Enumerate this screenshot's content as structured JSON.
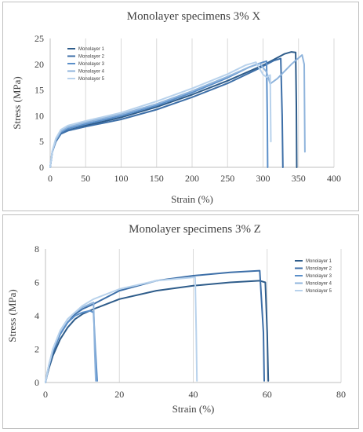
{
  "chart_data": [
    {
      "type": "line",
      "title": "Monolayer specimens 3% X",
      "xlabel": "Strain (%)",
      "ylabel": "Stress (MPa)",
      "xlim": [
        0,
        400
      ],
      "ylim": [
        0,
        25
      ],
      "xticks": [
        "0",
        "50",
        "100",
        "150",
        "200",
        "250",
        "300",
        "350",
        "400"
      ],
      "yticks": [
        "0",
        "5",
        "10",
        "15",
        "20",
        "25"
      ],
      "grid": "vertical",
      "legend_position": "top-left",
      "series": [
        {
          "name": "Monolayer 1",
          "color": "#2e5c8a",
          "x": [
            0,
            3,
            8,
            15,
            25,
            50,
            100,
            150,
            200,
            250,
            300,
            330,
            340,
            346,
            347,
            347.5
          ],
          "y": [
            0,
            3,
            5,
            6.5,
            7.2,
            8.1,
            9.7,
            11.7,
            14.1,
            16.8,
            19.8,
            22,
            22.4,
            22.3,
            12,
            0
          ]
        },
        {
          "name": "Monolayer 2",
          "color": "#3d6fa8",
          "x": [
            0,
            3,
            8,
            15,
            25,
            50,
            100,
            150,
            200,
            250,
            290,
            315,
            325,
            327,
            328
          ],
          "y": [
            0,
            3,
            5,
            6.5,
            7.1,
            7.9,
            9.3,
            11.2,
            13.6,
            16.3,
            18.9,
            20.7,
            21.1,
            10,
            0
          ]
        },
        {
          "name": "Monolayer 3",
          "color": "#5b8fc9",
          "x": [
            0,
            3,
            8,
            15,
            25,
            50,
            100,
            150,
            200,
            250,
            280,
            300,
            305,
            306,
            306.5
          ],
          "y": [
            0,
            3,
            5.2,
            6.8,
            7.5,
            8.4,
            10,
            12,
            14.5,
            17.4,
            19.4,
            20.4,
            20.6,
            10,
            0
          ]
        },
        {
          "name": "Monolayer 4",
          "color": "#8fb4dc",
          "x": [
            0,
            3,
            8,
            15,
            25,
            50,
            100,
            150,
            200,
            250,
            280,
            295,
            305,
            310,
            320,
            340,
            355,
            358,
            359
          ],
          "y": [
            0,
            3,
            5.3,
            7,
            7.8,
            8.7,
            10.3,
            12.3,
            14.8,
            17.6,
            19.4,
            20.2,
            18.5,
            16.2,
            17.2,
            20,
            21.8,
            20,
            3
          ]
        },
        {
          "name": "Monolayer 5",
          "color": "#b8d2ec",
          "x": [
            0,
            3,
            8,
            15,
            25,
            50,
            100,
            150,
            200,
            250,
            275,
            290,
            300,
            305,
            310,
            311
          ],
          "y": [
            0,
            3.2,
            5.6,
            7.3,
            8.1,
            9,
            10.6,
            12.8,
            15.3,
            18.1,
            19.8,
            20.4,
            18,
            17.5,
            17.9,
            5
          ]
        }
      ]
    },
    {
      "type": "line",
      "title": "Monolayer specimens 3% Z",
      "xlabel": "Strain (%)",
      "ylabel": "Stress (MPa)",
      "xlim": [
        0,
        80
      ],
      "ylim": [
        0,
        8
      ],
      "xticks": [
        "0",
        "20",
        "40",
        "60",
        "80"
      ],
      "yticks": [
        "0",
        "2",
        "4",
        "6",
        "8"
      ],
      "grid": "vertical",
      "legend_position": "right",
      "series": [
        {
          "name": "Monolayer 1",
          "color": "#2e5c8a",
          "x": [
            0,
            0.5,
            1,
            2,
            4,
            6,
            8,
            10,
            13,
            20,
            30,
            40,
            50,
            58,
            59.5,
            60,
            60.3
          ],
          "y": [
            0,
            0.5,
            0.9,
            1.6,
            2.6,
            3.3,
            3.8,
            4.1,
            4.4,
            5,
            5.5,
            5.8,
            6,
            6.1,
            6,
            3,
            0.1
          ]
        },
        {
          "name": "Monolayer 2",
          "color": "#3d6fa8",
          "x": [
            0,
            0.5,
            1,
            2,
            4,
            6,
            8,
            10,
            13,
            20,
            30,
            40,
            50,
            58,
            59,
            59.2
          ],
          "y": [
            0,
            0.6,
            1,
            1.8,
            2.9,
            3.6,
            4.1,
            4.4,
            4.7,
            5.5,
            6.1,
            6.4,
            6.6,
            6.7,
            3,
            0.1
          ]
        },
        {
          "name": "Monolayer 3",
          "color": "#5b8fc9",
          "x": [
            0,
            0.5,
            1,
            2,
            4,
            6,
            8,
            10,
            12,
            13,
            13.5,
            14
          ],
          "y": [
            0,
            0.6,
            1.1,
            1.9,
            2.9,
            3.6,
            4,
            4.2,
            4.3,
            4.2,
            2,
            0.1
          ]
        },
        {
          "name": "Monolayer 4",
          "color": "#8fb4dc",
          "x": [
            0,
            0.5,
            1,
            2,
            4,
            6,
            8,
            10,
            12,
            13,
            13.3,
            13.6
          ],
          "y": [
            0,
            0.6,
            1.1,
            2,
            3.1,
            3.8,
            4.2,
            4.5,
            4.7,
            4.8,
            2,
            0.1
          ]
        },
        {
          "name": "Monolayer 5",
          "color": "#b8d2ec",
          "x": [
            0,
            0.5,
            1,
            2,
            4,
            6,
            8,
            10,
            13,
            20,
            30,
            40,
            40.5,
            40.8,
            41
          ],
          "y": [
            0,
            0.6,
            1.1,
            2,
            3.1,
            3.8,
            4.2,
            4.6,
            5,
            5.6,
            6.1,
            6.3,
            6.3,
            3,
            0.1
          ]
        }
      ]
    }
  ]
}
